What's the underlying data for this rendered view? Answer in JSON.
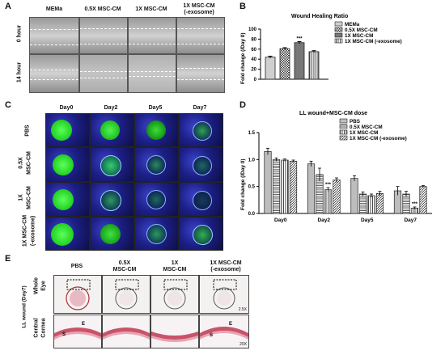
{
  "panels": {
    "A": "A",
    "B": "B",
    "C": "C",
    "D": "D",
    "E": "E"
  },
  "panelA": {
    "columns": [
      "MEMa",
      "0.5X MSC-CM",
      "1X MSC-CM",
      "1X MSC-CM",
      "(-exosome)"
    ],
    "rows": [
      "0 hour",
      "14 hour"
    ]
  },
  "chart_B": {
    "type": "bar",
    "title": "Wound Healing Ratio",
    "ylabel": "Fold change (/Day 0)",
    "ylim": [
      0,
      100
    ],
    "yticks": [
      "0",
      "20",
      "40",
      "60",
      "80",
      "100"
    ],
    "series": [
      {
        "name": "MEMa",
        "value": 44,
        "err": 2
      },
      {
        "name": "0.5X MSC-CM",
        "value": 61,
        "err": 2
      },
      {
        "name": "1X MSC-CM",
        "value": 73,
        "err": 2
      },
      {
        "name": "1X MSC-CM (-exosome)",
        "value": 55,
        "err": 2
      }
    ],
    "annotation": "***"
  },
  "panelC": {
    "columns": [
      "Day0",
      "Day2",
      "Day5",
      "Day7"
    ],
    "rows": [
      "PBS",
      "0.5X",
      "MSC-CM",
      "1X",
      "MSC-CM",
      "1X MSC-CM",
      "(-exosome)"
    ]
  },
  "chart_D": {
    "type": "bar",
    "title": "LL wound+MSC-CM dose",
    "ylabel": "Fold change (/Day 0)",
    "ylim": [
      0,
      1.5
    ],
    "yticks": [
      "0.0",
      "0.5",
      "1.0",
      "1.5"
    ],
    "categories": [
      "Day0",
      "Day2",
      "Day5",
      "Day7"
    ],
    "series": [
      {
        "name": "PBS",
        "values": [
          1.15,
          0.92,
          0.65,
          0.42
        ],
        "err": [
          0.06,
          0.05,
          0.05,
          0.08
        ]
      },
      {
        "name": "0.5X MSC-CM",
        "values": [
          1.0,
          0.72,
          0.36,
          0.36
        ],
        "err": [
          0.03,
          0.12,
          0.04,
          0.05
        ]
      },
      {
        "name": "1X MSC-CM",
        "values": [
          0.99,
          0.44,
          0.33,
          0.1
        ],
        "err": [
          0.02,
          0.04,
          0.03,
          0.02
        ]
      },
      {
        "name": "1X MSC-CM (-exosome)",
        "values": [
          0.97,
          0.62,
          0.37,
          0.5
        ],
        "err": [
          0.02,
          0.04,
          0.04,
          0.02
        ]
      }
    ],
    "annotations": [
      "***",
      "***"
    ]
  },
  "panelE": {
    "columns": [
      "PBS",
      "0.5X",
      "MSC-CM",
      "1X",
      "MSC-CM",
      "1X MSC-CM",
      "(-exosome)"
    ],
    "side_title": "LL wound (Day7)",
    "rows": [
      "Whole",
      "Eye",
      "Central",
      "Cornea"
    ],
    "mag1": "2.5X",
    "mag2": "20X",
    "marks": [
      "S",
      "E"
    ]
  }
}
